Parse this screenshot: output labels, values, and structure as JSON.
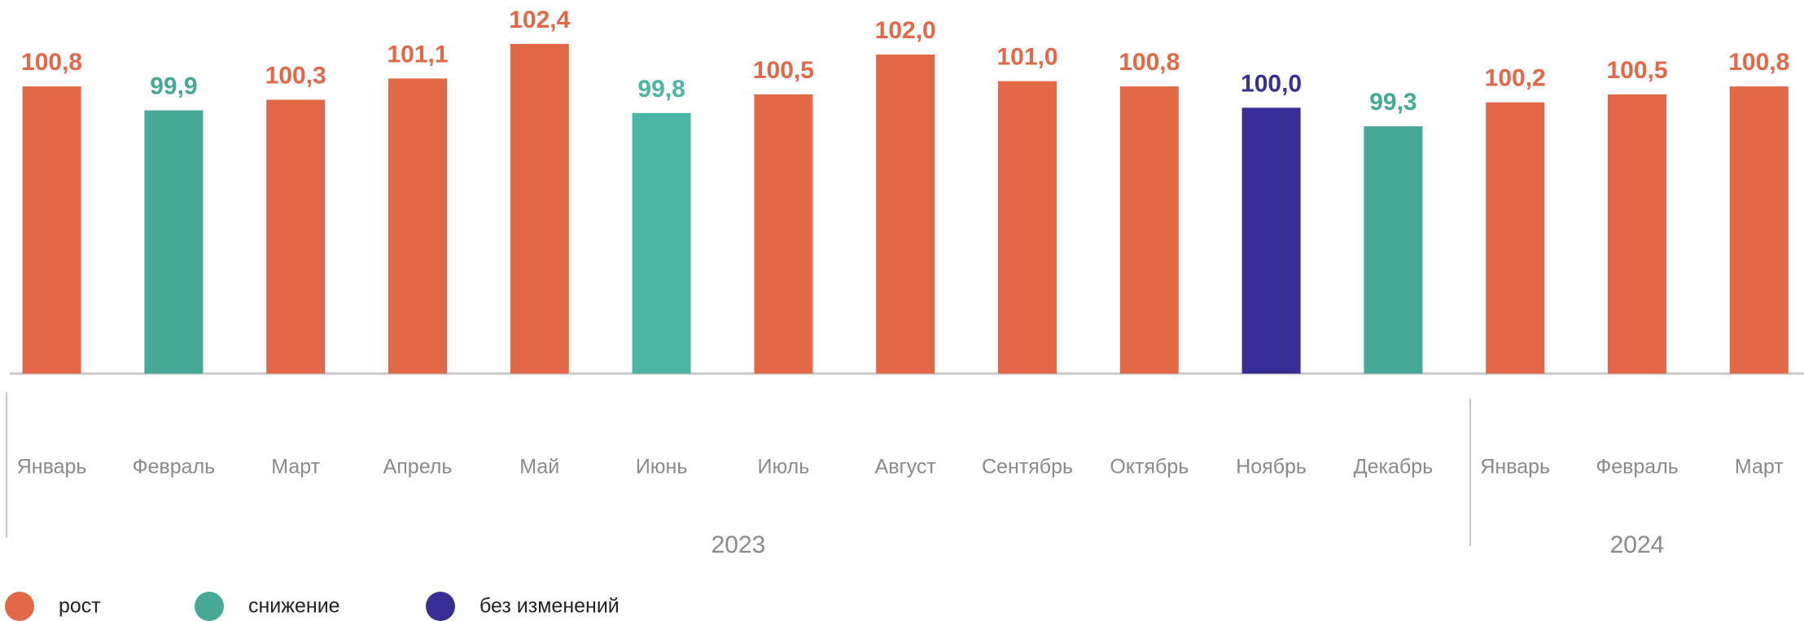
{
  "chart_data": {
    "type": "bar",
    "categories": [
      "Январь",
      "Февраль",
      "Март",
      "Апрель",
      "Май",
      "Июнь",
      "Июль",
      "Август",
      "Сентябрь",
      "Октябрь",
      "Ноябрь",
      "Декабрь",
      "Январь",
      "Февраль",
      "Март"
    ],
    "values": [
      100.8,
      99.9,
      100.3,
      101.1,
      102.4,
      99.8,
      100.5,
      102.0,
      101.0,
      100.8,
      100.0,
      99.3,
      100.2,
      100.5,
      100.8
    ],
    "value_labels": [
      "100,8",
      "99,9",
      "100,3",
      "101,1",
      "102,4",
      "99,8",
      "100,5",
      "102,0",
      "101,0",
      "100,8",
      "100,0",
      "99,3",
      "100,2",
      "100,5",
      "100,8"
    ],
    "colors": [
      "#e36847",
      "#45a996",
      "#e36847",
      "#e36847",
      "#e36847",
      "#4bb6a3",
      "#e36847",
      "#e36847",
      "#e36847",
      "#e36847",
      "#372f96",
      "#45a996",
      "#e36847",
      "#e36847",
      "#e36847"
    ],
    "groups": [
      "2023",
      "2024"
    ],
    "legend": [
      {
        "label": "рост",
        "color": "#e36847"
      },
      {
        "label": "снижение",
        "color": "#45a996"
      },
      {
        "label": "без изменений",
        "color": "#372f96"
      }
    ],
    "ylim": [
      90,
      103.5
    ]
  }
}
